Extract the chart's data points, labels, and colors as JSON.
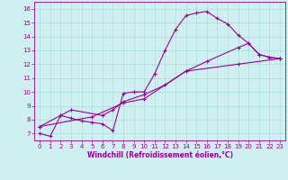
{
  "background_color": "#cff0f0",
  "grid_color": "#aadddd",
  "line_color": "#990099",
  "marker": "+",
  "marker_size": 3,
  "marker_edge_width": 0.8,
  "line_width": 0.8,
  "xlim": [
    -0.5,
    23.5
  ],
  "ylim": [
    6.5,
    16.5
  ],
  "xlabel": "Windchill (Refroidissement éolien,°C)",
  "xlabel_fontsize": 5.5,
  "xticks": [
    0,
    1,
    2,
    3,
    4,
    5,
    6,
    7,
    8,
    9,
    10,
    11,
    12,
    13,
    14,
    15,
    16,
    17,
    18,
    19,
    20,
    21,
    22,
    23
  ],
  "yticks": [
    7,
    8,
    9,
    10,
    11,
    12,
    13,
    14,
    15,
    16
  ],
  "tick_fontsize": 5,
  "series": [
    {
      "x": [
        0,
        1,
        2,
        3,
        4,
        5,
        6,
        7,
        8,
        9,
        10,
        11,
        12,
        13,
        14,
        15,
        16,
        17,
        18,
        19,
        20,
        21,
        22,
        23
      ],
      "y": [
        7.0,
        6.8,
        8.3,
        8.1,
        7.9,
        7.8,
        7.7,
        7.2,
        9.9,
        10.0,
        10.0,
        11.3,
        13.0,
        14.5,
        15.5,
        15.7,
        15.8,
        15.3,
        14.9,
        14.1,
        13.5,
        12.7,
        12.5,
        12.4
      ]
    },
    {
      "x": [
        0,
        2,
        3,
        6,
        7,
        8,
        10,
        12,
        14,
        16,
        19,
        20,
        21,
        22,
        23
      ],
      "y": [
        7.5,
        8.3,
        8.7,
        8.3,
        8.7,
        9.3,
        9.8,
        10.5,
        11.5,
        12.2,
        13.2,
        13.5,
        12.7,
        12.5,
        12.4
      ]
    },
    {
      "x": [
        0,
        5,
        8,
        10,
        14,
        19,
        23
      ],
      "y": [
        7.5,
        8.2,
        9.2,
        9.5,
        11.5,
        12.0,
        12.4
      ]
    }
  ]
}
